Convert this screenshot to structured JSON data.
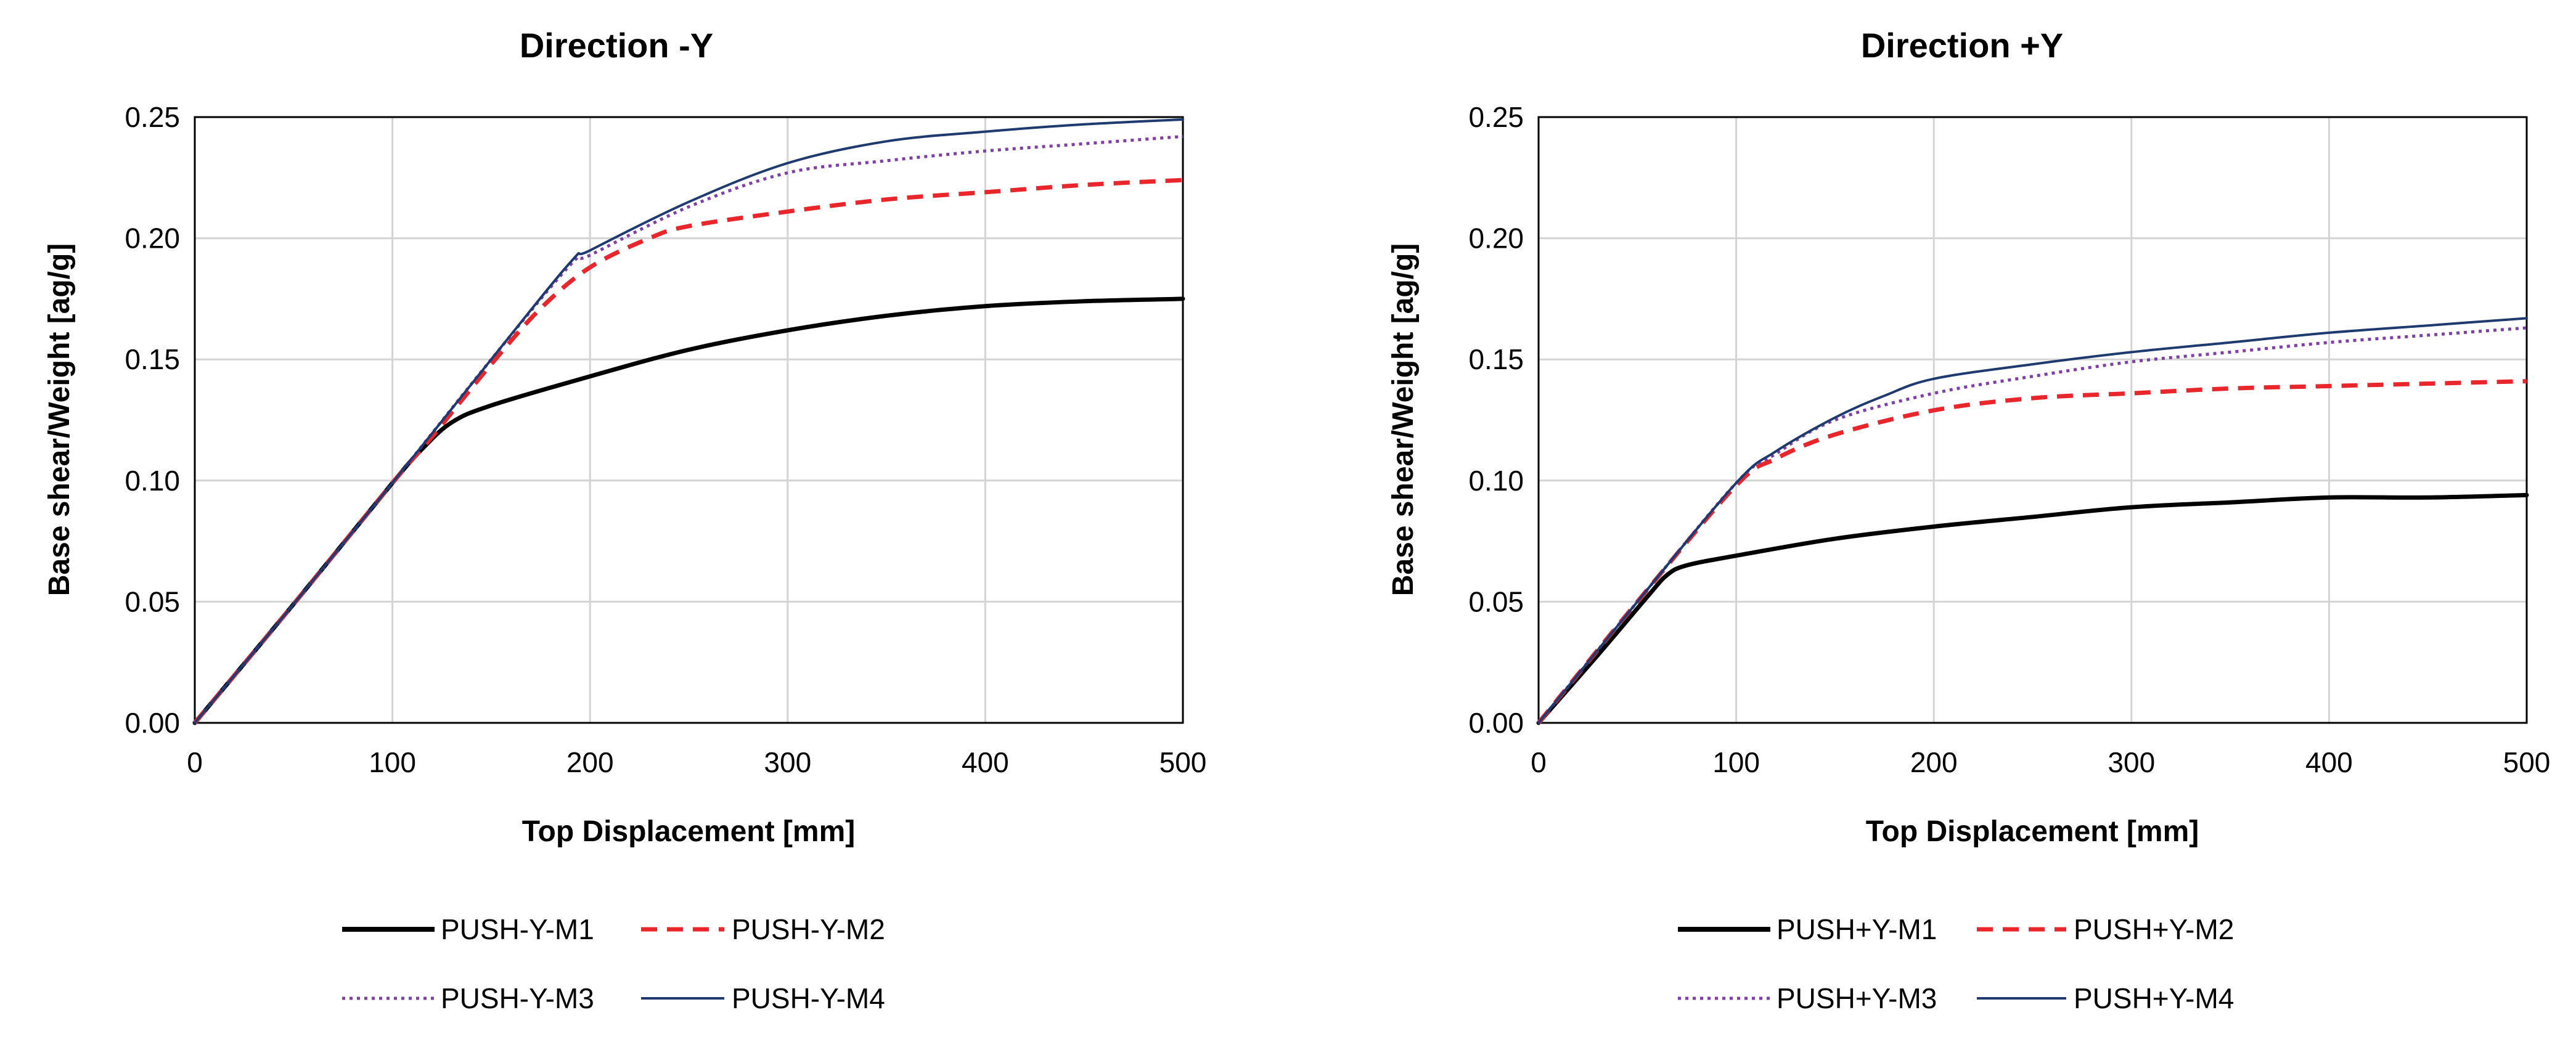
{
  "chart_data": [
    {
      "type": "line",
      "title": "Direction -Y",
      "xlabel": "Top Displacement [mm]",
      "ylabel": "Base shear/Weight [ag/g]",
      "xlim": [
        0,
        500
      ],
      "ylim": [
        0,
        0.25
      ],
      "xticks": [
        "0",
        "100",
        "200",
        "300",
        "400",
        "500"
      ],
      "yticks": [
        "0.00",
        "0.05",
        "0.10",
        "0.15",
        "0.20",
        "0.25"
      ],
      "grid": true,
      "legend_position": "bottom",
      "series": [
        {
          "name": "PUSH-Y-M1",
          "style": "solid-thick",
          "color": "#000000",
          "points": [
            [
              0,
              0
            ],
            [
              50,
              0.049
            ],
            [
              100,
              0.099
            ],
            [
              115,
              0.113
            ],
            [
              130,
              0.124
            ],
            [
              150,
              0.131
            ],
            [
              200,
              0.143
            ],
            [
              250,
              0.154
            ],
            [
              300,
              0.162
            ],
            [
              350,
              0.168
            ],
            [
              400,
              0.172
            ],
            [
              450,
              0.174
            ],
            [
              500,
              0.175
            ]
          ]
        },
        {
          "name": "PUSH-Y-M2",
          "style": "dashed",
          "color": "#e8262b",
          "points": [
            [
              0,
              0
            ],
            [
              50,
              0.049
            ],
            [
              100,
              0.099
            ],
            [
              120,
              0.118
            ],
            [
              150,
              0.148
            ],
            [
              175,
              0.171
            ],
            [
              200,
              0.188
            ],
            [
              230,
              0.2
            ],
            [
              250,
              0.205
            ],
            [
              300,
              0.211
            ],
            [
              350,
              0.216
            ],
            [
              400,
              0.219
            ],
            [
              450,
              0.222
            ],
            [
              500,
              0.224
            ]
          ]
        },
        {
          "name": "PUSH-Y-M3",
          "style": "dotted",
          "color": "#7e3fa8",
          "points": [
            [
              0,
              0
            ],
            [
              50,
              0.049
            ],
            [
              100,
              0.099
            ],
            [
              150,
              0.15
            ],
            [
              190,
              0.189
            ],
            [
              200,
              0.193
            ],
            [
              250,
              0.213
            ],
            [
              300,
              0.227
            ],
            [
              350,
              0.232
            ],
            [
              400,
              0.236
            ],
            [
              450,
              0.239
            ],
            [
              500,
              0.242
            ]
          ]
        },
        {
          "name": "PUSH-Y-M4",
          "style": "solid-thin",
          "color": "#1f3a6e",
          "points": [
            [
              0,
              0
            ],
            [
              50,
              0.049
            ],
            [
              100,
              0.099
            ],
            [
              150,
              0.15
            ],
            [
              190,
              0.19
            ],
            [
              200,
              0.195
            ],
            [
              250,
              0.215
            ],
            [
              300,
              0.231
            ],
            [
              350,
              0.24
            ],
            [
              400,
              0.244
            ],
            [
              450,
              0.247
            ],
            [
              500,
              0.249
            ]
          ]
        }
      ]
    },
    {
      "type": "line",
      "title": "Direction +Y",
      "xlabel": "Top Displacement [mm]",
      "ylabel": "Base shear/Weight [ag/g]",
      "xlim": [
        0,
        500
      ],
      "ylim": [
        0,
        0.25
      ],
      "xticks": [
        "0",
        "100",
        "200",
        "300",
        "400",
        "500"
      ],
      "yticks": [
        "0.00",
        "0.05",
        "0.10",
        "0.15",
        "0.20",
        "0.25"
      ],
      "grid": true,
      "legend_position": "bottom",
      "series": [
        {
          "name": "PUSH+Y-M1",
          "style": "solid-thick",
          "color": "#000000",
          "points": [
            [
              0,
              0
            ],
            [
              30,
              0.028
            ],
            [
              55,
              0.052
            ],
            [
              65,
              0.061
            ],
            [
              75,
              0.065
            ],
            [
              100,
              0.069
            ],
            [
              150,
              0.076
            ],
            [
              200,
              0.081
            ],
            [
              250,
              0.085
            ],
            [
              300,
              0.089
            ],
            [
              350,
              0.091
            ],
            [
              400,
              0.093
            ],
            [
              450,
              0.093
            ],
            [
              500,
              0.094
            ]
          ]
        },
        {
          "name": "PUSH+Y-M2",
          "style": "dashed",
          "color": "#e8262b",
          "points": [
            [
              0,
              0
            ],
            [
              50,
              0.05
            ],
            [
              100,
              0.098
            ],
            [
              120,
              0.109
            ],
            [
              150,
              0.119
            ],
            [
              200,
              0.129
            ],
            [
              250,
              0.134
            ],
            [
              300,
              0.136
            ],
            [
              350,
              0.138
            ],
            [
              400,
              0.139
            ],
            [
              450,
              0.14
            ],
            [
              500,
              0.141
            ]
          ]
        },
        {
          "name": "PUSH+Y-M3",
          "style": "dotted",
          "color": "#7e3fa8",
          "points": [
            [
              0,
              0
            ],
            [
              50,
              0.05
            ],
            [
              100,
              0.099
            ],
            [
              120,
              0.111
            ],
            [
              150,
              0.125
            ],
            [
              200,
              0.136
            ],
            [
              250,
              0.143
            ],
            [
              300,
              0.149
            ],
            [
              350,
              0.153
            ],
            [
              400,
              0.157
            ],
            [
              450,
              0.16
            ],
            [
              500,
              0.163
            ]
          ]
        },
        {
          "name": "PUSH+Y-M4",
          "style": "solid-thin",
          "color": "#1f3a6e",
          "points": [
            [
              0,
              0
            ],
            [
              50,
              0.05
            ],
            [
              100,
              0.099
            ],
            [
              120,
              0.112
            ],
            [
              150,
              0.126
            ],
            [
              175,
              0.135
            ],
            [
              200,
              0.142
            ],
            [
              250,
              0.148
            ],
            [
              300,
              0.153
            ],
            [
              350,
              0.157
            ],
            [
              400,
              0.161
            ],
            [
              450,
              0.164
            ],
            [
              500,
              0.167
            ]
          ]
        }
      ]
    }
  ]
}
